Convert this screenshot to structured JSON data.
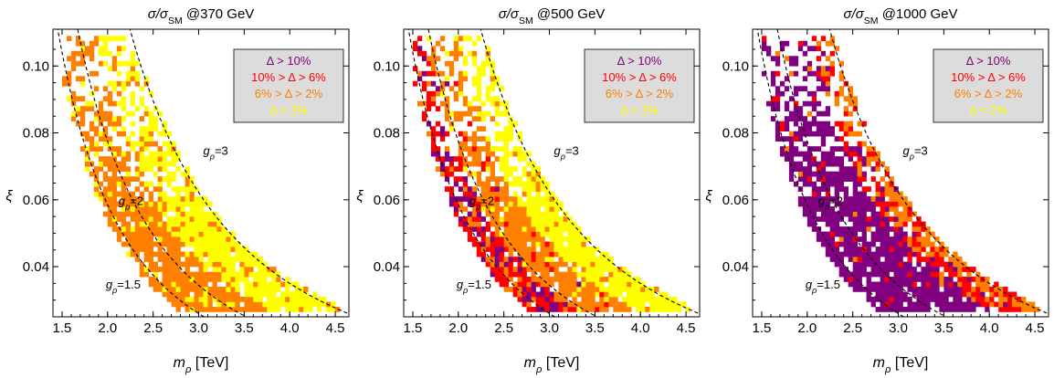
{
  "chart_data": {
    "type": "heatmap",
    "shared": {
      "xlabel": "m",
      "xlabel_sub": "ρ",
      "xlabel_unit": "[TeV]",
      "ylabel": "ξ",
      "xlim": [
        1.4,
        4.65
      ],
      "ylim": [
        0.025,
        0.111
      ],
      "xticks": [
        1.5,
        2.0,
        2.5,
        3.0,
        3.5,
        4.0,
        4.5
      ],
      "xtick_labels": [
        "1.5",
        "2.0",
        "2.5",
        "3.0",
        "3.5",
        "4.0",
        "4.5"
      ],
      "yticks": [
        0.04,
        0.06,
        0.08,
        0.1
      ],
      "ytick_labels": [
        "0.04",
        "0.06",
        "0.08",
        "0.10"
      ],
      "legend": {
        "placement": "top-right",
        "background": "#dcdcdc",
        "entries": [
          {
            "label": "Δ > 10%",
            "color": "#800080"
          },
          {
            "label": "10% > Δ > 6%",
            "color": "#ff0000"
          },
          {
            "label": "6% > Δ > 2%",
            "color": "#ff8000"
          },
          {
            "label": "Δ < 2%",
            "color": "#ffff00"
          }
        ]
      },
      "curves": [
        {
          "name": "gρ=1.5",
          "label_main": "g",
          "label_sub": "ρ",
          "label_val": "=1.5",
          "g": 1.5
        },
        {
          "name": "gρ=2",
          "label_main": "g",
          "label_sub": "ρ",
          "label_val": "=2",
          "g": 2.0
        },
        {
          "name": "gρ=3",
          "label_main": "g",
          "label_sub": "ρ",
          "label_val": "=3",
          "g": 3.0
        }
      ],
      "curve_style": "dashed"
    },
    "panels": [
      {
        "title_main": "σ/σ",
        "title_sub": "SM",
        "title_tail": " @370 GeV",
        "energy_gev": 370,
        "mix": [
          0,
          0,
          0.3,
          0.7
        ]
      },
      {
        "title_main": "σ/σ",
        "title_sub": "SM",
        "title_tail": " @500 GeV",
        "energy_gev": 500,
        "mix": [
          0.1,
          0.15,
          0.4,
          0.35
        ]
      },
      {
        "title_main": "σ/σ",
        "title_sub": "SM",
        "title_tail": " @1000 GeV",
        "energy_gev": 1000,
        "mix": [
          0.65,
          0.2,
          0.15,
          0
        ]
      }
    ]
  }
}
